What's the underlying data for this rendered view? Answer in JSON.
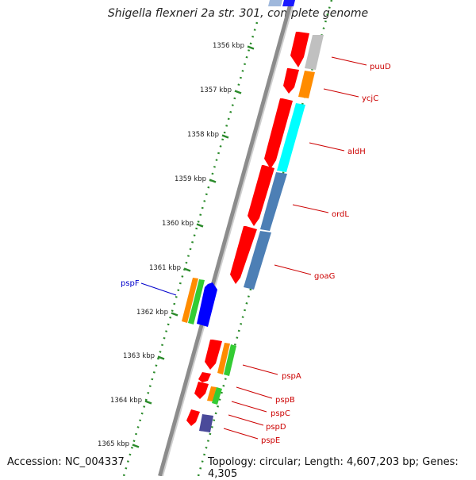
{
  "title": "Shigella flexneri 2a str. 301, complete genome",
  "accession": "Accession: NC_004337",
  "topology": "Topology: circular; Length: 4,607,203 bp; Genes: 4,305",
  "colors": {
    "backbone": "#8c8c8c",
    "forward_dots": "#2a8a2a",
    "reverse_gene": "#ff0000",
    "label_red": "#cc0000",
    "label_blue": "#0000cc"
  },
  "ticks": [
    {
      "label": "1356 kbp"
    },
    {
      "label": "1357 kbp"
    },
    {
      "label": "1358 kbp"
    },
    {
      "label": "1359 kbp"
    },
    {
      "label": "1360 kbp"
    },
    {
      "label": "1361 kbp"
    },
    {
      "label": "1362 kbp"
    },
    {
      "label": "1363 kbp"
    },
    {
      "label": "1364 kbp"
    },
    {
      "label": "1365 kbp"
    }
  ],
  "gene_labels": [
    {
      "text": "puuD",
      "color": "#cc0000"
    },
    {
      "text": "ycjC",
      "color": "#cc0000"
    },
    {
      "text": "aldH",
      "color": "#cc0000"
    },
    {
      "text": "ordL",
      "color": "#cc0000"
    },
    {
      "text": "goaG",
      "color": "#cc0000"
    },
    {
      "text": "pspF",
      "color": "#0000cc"
    },
    {
      "text": "pspA",
      "color": "#cc0000"
    },
    {
      "text": "pspB",
      "color": "#cc0000"
    },
    {
      "text": "pspC",
      "color": "#cc0000"
    },
    {
      "text": "pspD",
      "color": "#cc0000"
    },
    {
      "text": "pspE",
      "color": "#cc0000"
    }
  ]
}
